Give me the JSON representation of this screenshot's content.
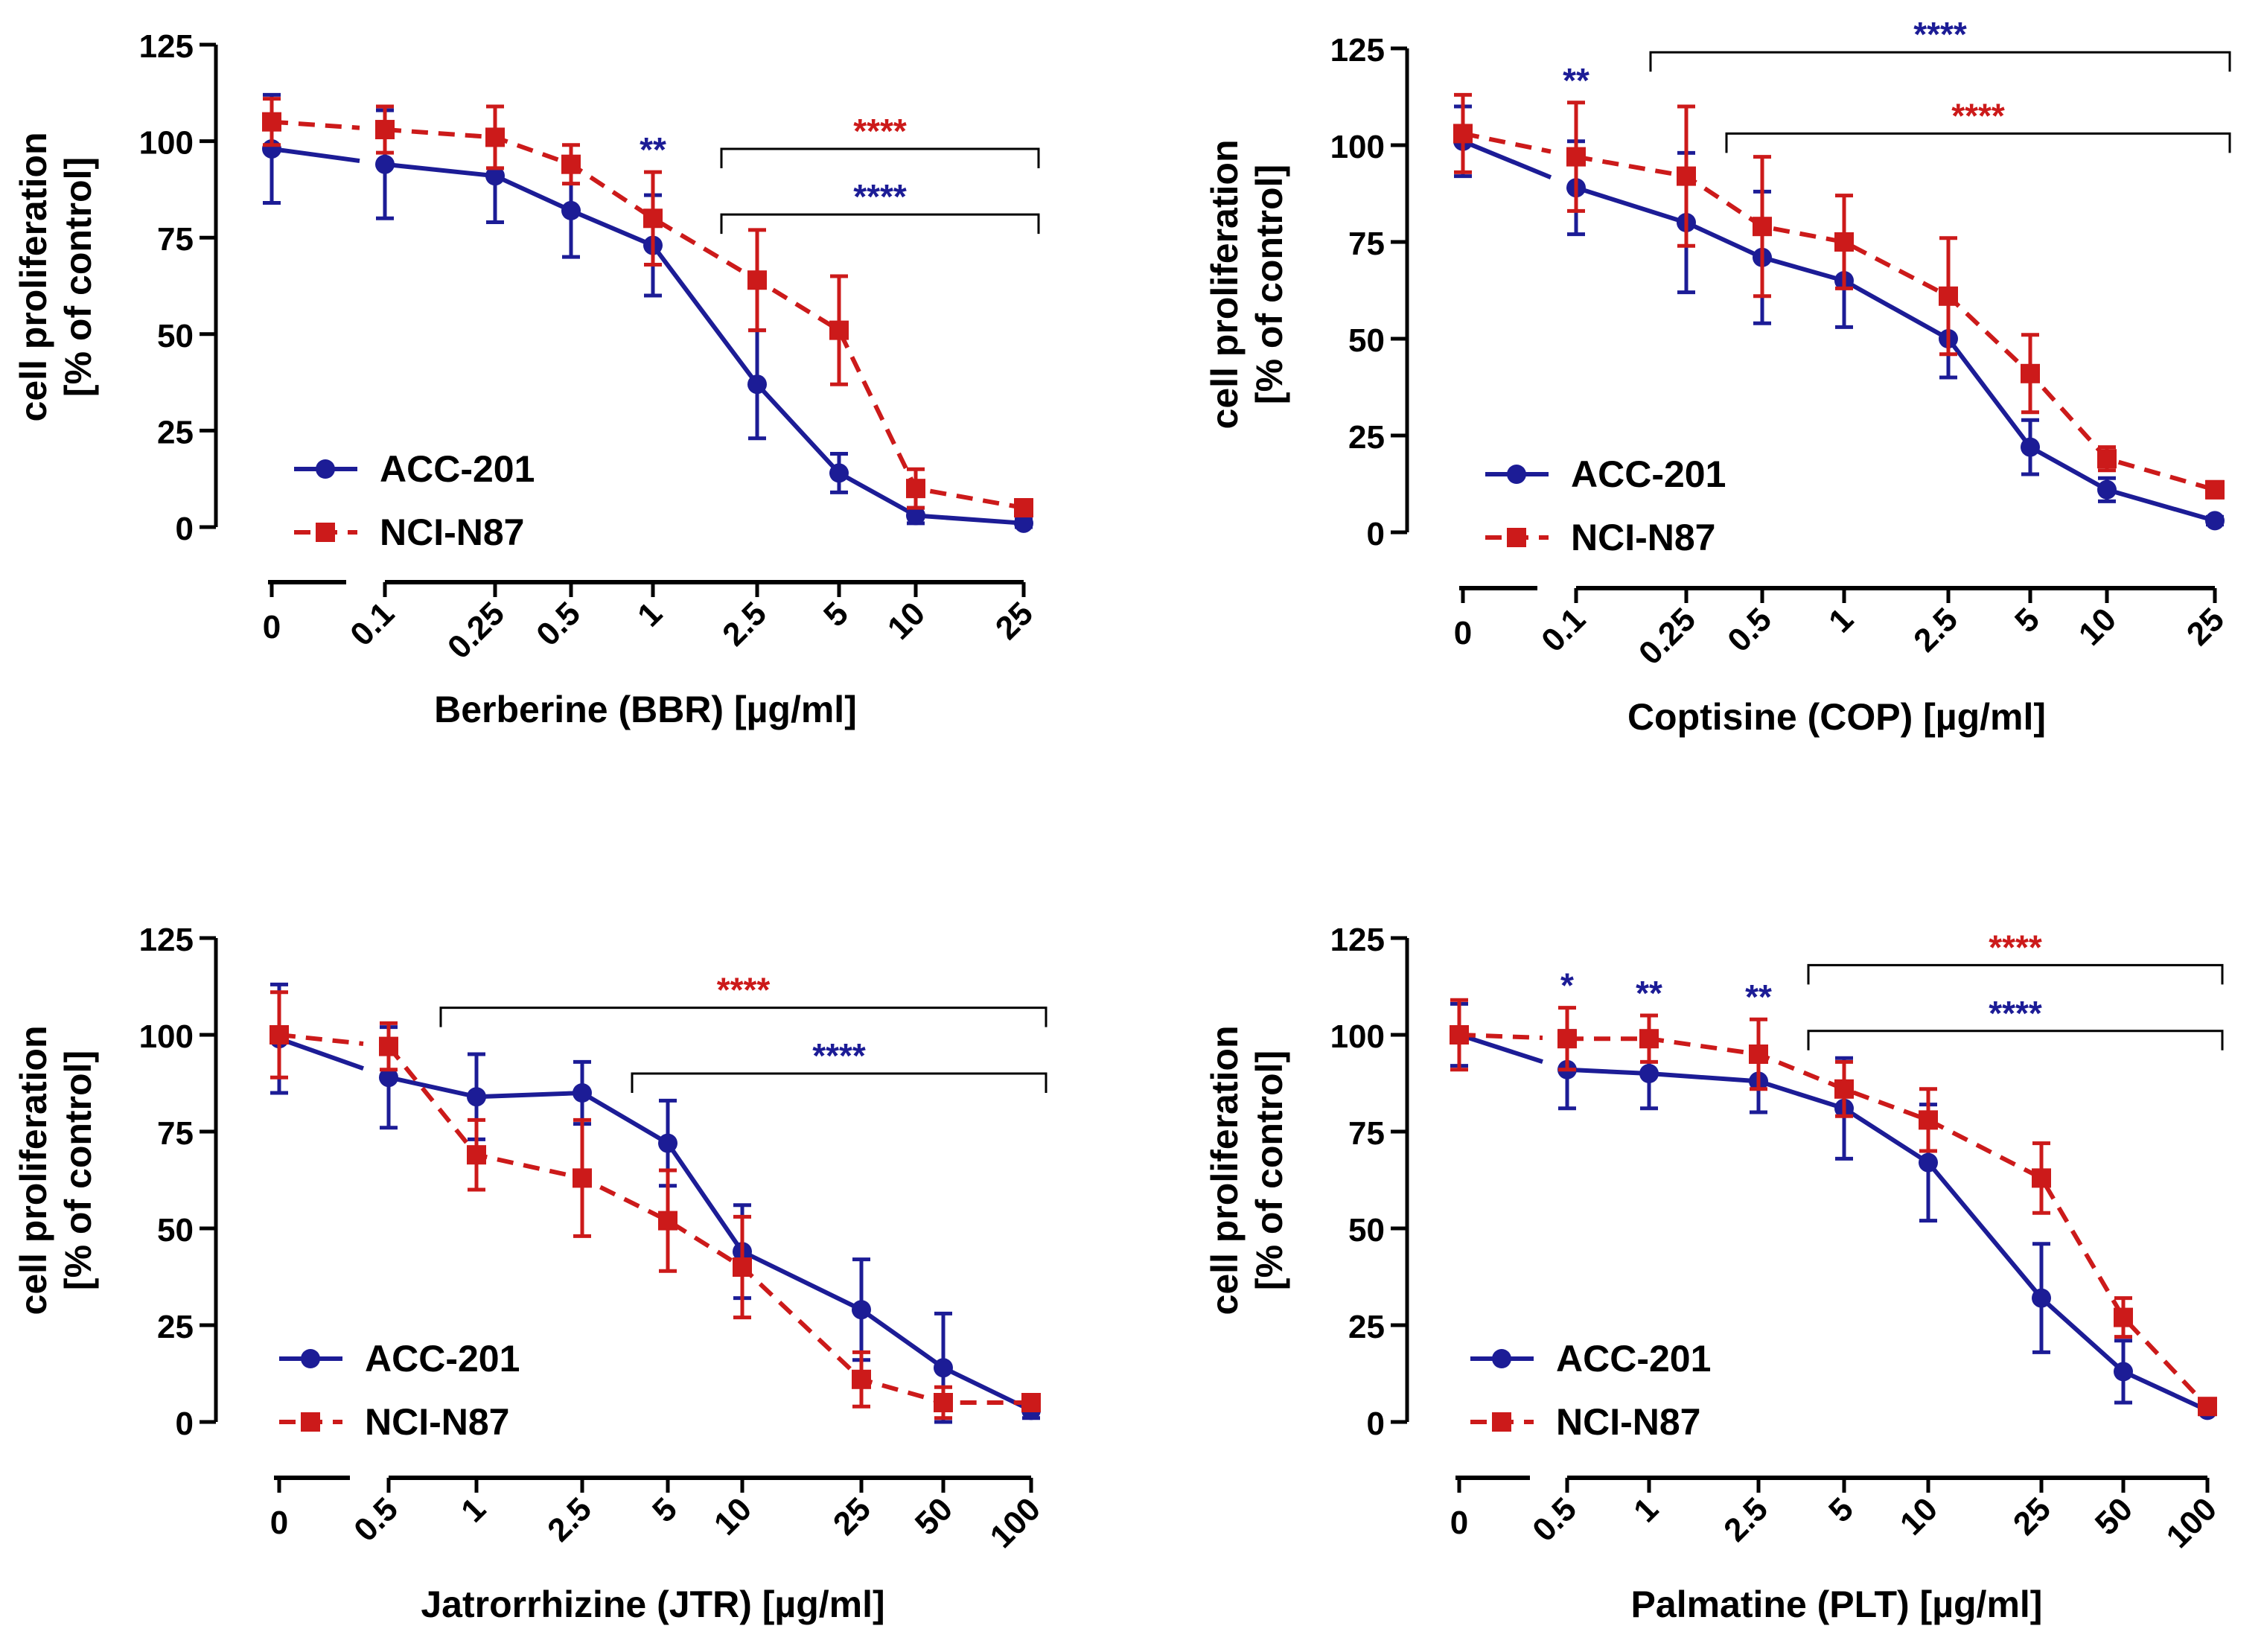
{
  "colors": {
    "acc": "#1c1c96",
    "nci": "#cc1a1a",
    "axis": "#000000"
  },
  "chart_data": [
    {
      "type": "line",
      "id": "bbr",
      "xlabel": "Berberine (BBR) [µg/ml]",
      "ylabel_line1": "cell proliferation",
      "ylabel_line2": "[% of control]",
      "ylim": [
        0,
        125
      ],
      "yticks": [
        "0",
        "25",
        "50",
        "75",
        "100",
        "125"
      ],
      "categories": [
        "0",
        "0.1",
        "0.25",
        "0.5",
        "1",
        "2.5",
        "5",
        "10",
        "25"
      ],
      "legend": [
        "ACC-201",
        "NCI-N87"
      ],
      "series": [
        {
          "name": "ACC-201",
          "values": [
            98,
            94,
            91,
            82,
            73,
            37,
            14,
            3,
            1
          ],
          "errors": [
            14,
            14,
            12,
            12,
            13,
            14,
            5,
            2,
            1
          ]
        },
        {
          "name": "NCI-N87",
          "values": [
            105,
            103,
            101,
            94,
            80,
            64,
            51,
            10,
            5
          ],
          "errors": [
            6,
            6,
            8,
            5,
            12,
            13,
            14,
            5,
            2
          ]
        }
      ],
      "point_marks": [
        {
          "series": "ACC-201",
          "category": "1",
          "text": "**"
        }
      ],
      "brackets": [
        {
          "series": "NCI-N87",
          "from": "2.5",
          "to": "25",
          "level": 98,
          "text": "****"
        },
        {
          "series": "ACC-201",
          "from": "2.5",
          "to": "25",
          "level": 81,
          "text": "****"
        }
      ]
    },
    {
      "type": "line",
      "id": "cop",
      "xlabel": "Coptisine (COP) [µg/ml]",
      "ylabel_line1": "cell proliferation",
      "ylabel_line2": "[% of control]",
      "ylim": [
        0,
        125
      ],
      "yticks": [
        "0",
        "25",
        "50",
        "75",
        "100",
        "125"
      ],
      "categories": [
        "0",
        "0.1",
        "0.25",
        "0.5",
        "1",
        "2.5",
        "5",
        "10",
        "25"
      ],
      "legend": [
        "ACC-201",
        "NCI-N87"
      ],
      "series": [
        {
          "name": "ACC-201",
          "values": [
            101,
            89,
            80,
            71,
            65,
            50,
            22,
            11,
            3
          ],
          "errors": [
            9,
            12,
            18,
            17,
            12,
            10,
            7,
            3,
            1
          ]
        },
        {
          "name": "NCI-N87",
          "values": [
            103,
            97,
            92,
            79,
            75,
            61,
            41,
            19,
            11
          ],
          "errors": [
            10,
            14,
            18,
            18,
            12,
            15,
            10,
            3,
            2
          ]
        }
      ],
      "point_marks": [
        {
          "series": "ACC-201",
          "category": "0.1",
          "text": "**"
        }
      ],
      "brackets": [
        {
          "series": "ACC-201",
          "from": "0.25",
          "to": "25",
          "level": 124,
          "text": "****"
        },
        {
          "series": "NCI-N87",
          "from": "0.5",
          "to": "25",
          "level": 103,
          "text": "****"
        }
      ]
    },
    {
      "type": "line",
      "id": "jtr",
      "xlabel": "Jatrorrhizine (JTR) [µg/ml]",
      "ylabel_line1": "cell proliferation",
      "ylabel_line2": "[% of control]",
      "ylim": [
        0,
        125
      ],
      "yticks": [
        "0",
        "25",
        "50",
        "75",
        "100",
        "125"
      ],
      "categories": [
        "0",
        "0.5",
        "1",
        "2.5",
        "5",
        "10",
        "25",
        "50",
        "100"
      ],
      "legend": [
        "ACC-201",
        "NCI-N87"
      ],
      "series": [
        {
          "name": "ACC-201",
          "values": [
            99,
            89,
            84,
            85,
            72,
            44,
            29,
            14,
            3
          ],
          "errors": [
            14,
            13,
            11,
            8,
            11,
            12,
            13,
            14,
            2
          ]
        },
        {
          "name": "NCI-N87",
          "values": [
            100,
            97,
            69,
            63,
            52,
            40,
            11,
            5,
            5
          ],
          "errors": [
            11,
            6,
            9,
            15,
            13,
            13,
            7,
            4,
            2
          ]
        }
      ],
      "point_marks": [],
      "brackets": [
        {
          "series": "NCI-N87",
          "from": "1",
          "to": "100",
          "level": 107,
          "text": "****"
        },
        {
          "series": "ACC-201",
          "from": "5",
          "to": "100",
          "level": 90,
          "text": "****"
        }
      ]
    },
    {
      "type": "line",
      "id": "plt",
      "xlabel": "Palmatine (PLT) [µg/ml]",
      "ylabel_line1": "cell proliferation",
      "ylabel_line2": "[% of control]",
      "ylim": [
        0,
        125
      ],
      "yticks": [
        "0",
        "25",
        "50",
        "75",
        "100",
        "125"
      ],
      "categories": [
        "0",
        "0.5",
        "1",
        "2.5",
        "5",
        "10",
        "25",
        "50",
        "100"
      ],
      "legend": [
        "ACC-201",
        "NCI-N87"
      ],
      "series": [
        {
          "name": "ACC-201",
          "values": [
            100,
            91,
            90,
            88,
            81,
            67,
            32,
            13,
            3
          ],
          "errors": [
            8,
            10,
            9,
            8,
            13,
            15,
            14,
            8,
            1
          ]
        },
        {
          "name": "NCI-N87",
          "values": [
            100,
            99,
            99,
            95,
            86,
            78,
            63,
            27,
            4
          ],
          "errors": [
            9,
            8,
            6,
            9,
            7,
            8,
            9,
            5,
            1
          ]
        }
      ],
      "point_marks": [
        {
          "series": "ACC-201",
          "category": "0.5",
          "text": "*"
        },
        {
          "series": "ACC-201",
          "category": "1",
          "text": "**"
        },
        {
          "series": "ACC-201",
          "category": "2.5",
          "text": "**"
        }
      ],
      "brackets": [
        {
          "series": "NCI-N87",
          "from": "5",
          "to": "100",
          "level": 118,
          "text": "****"
        },
        {
          "series": "ACC-201",
          "from": "5",
          "to": "100",
          "level": 101,
          "text": "****"
        }
      ]
    }
  ]
}
